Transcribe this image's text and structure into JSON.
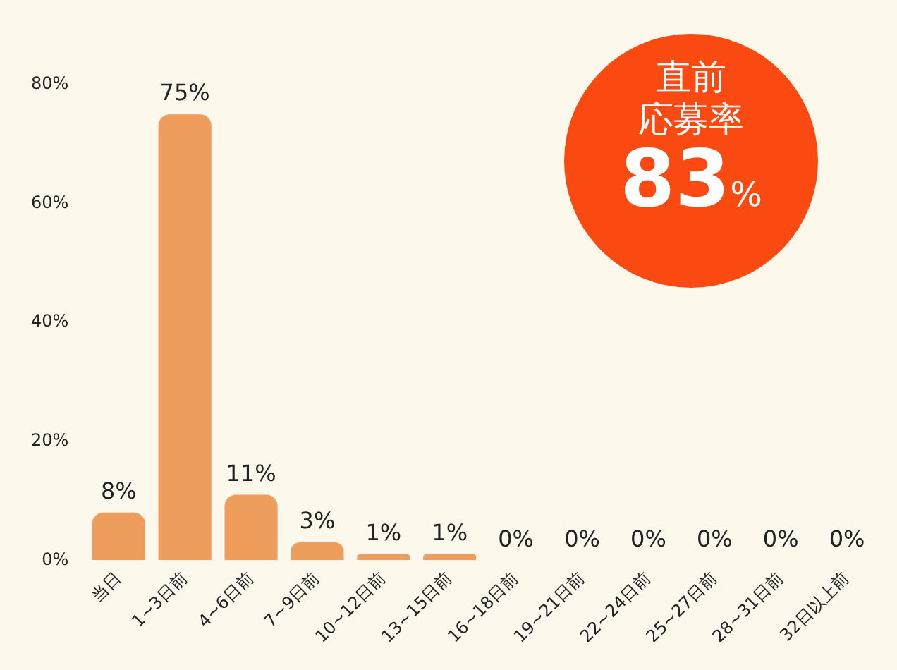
{
  "chart_data": {
    "type": "bar",
    "categories": [
      "当日",
      "1~3日前",
      "4~6日前",
      "7~9日前",
      "10~12日前",
      "13~15日前",
      "16~18日前",
      "19~21日前",
      "22~24日前",
      "25~27日前",
      "28~31日前",
      "32日以上前"
    ],
    "values": [
      8,
      75,
      11,
      3,
      1,
      1,
      0,
      0,
      0,
      0,
      0,
      0
    ],
    "value_labels": [
      "8%",
      "75%",
      "11%",
      "3%",
      "1%",
      "1%",
      "0%",
      "0%",
      "0%",
      "0%",
      "0%",
      "0%"
    ],
    "color": "#ef9d5c",
    "ylim": [
      0,
      80
    ],
    "yticks": [
      {
        "value": 0,
        "label": "0%"
      },
      {
        "value": 20,
        "label": "20%"
      },
      {
        "value": 40,
        "label": "40%"
      },
      {
        "value": 60,
        "label": "60%"
      },
      {
        "value": 80,
        "label": "80%"
      }
    ],
    "grid": false,
    "legend": false,
    "annotations": [
      "直前",
      "応募率",
      "83%"
    ]
  }
}
